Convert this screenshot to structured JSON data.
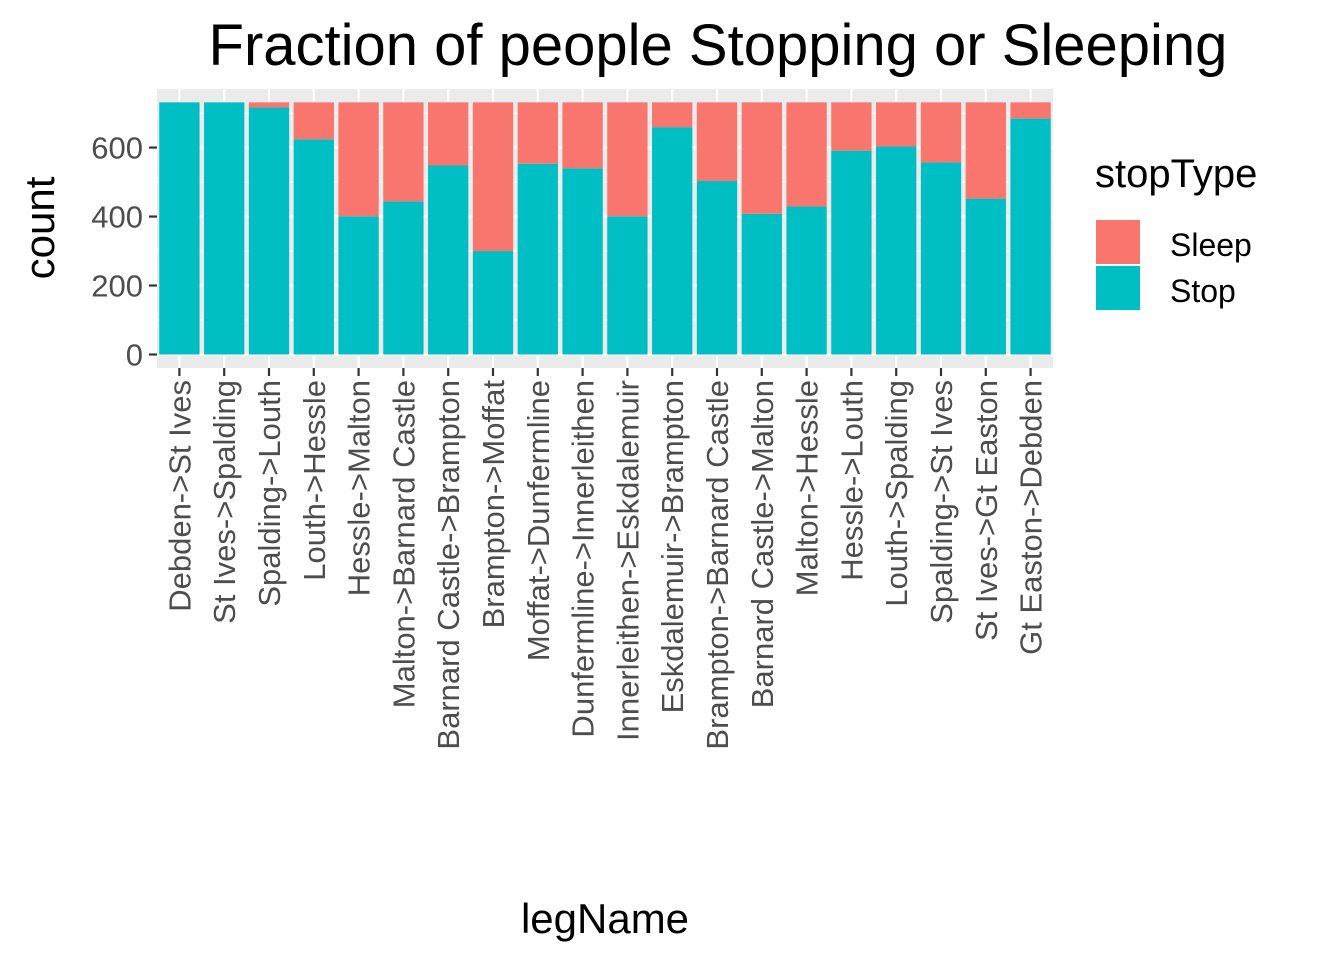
{
  "chart_data": {
    "type": "bar",
    "stacked": true,
    "title": "Fraction of people Stopping or Sleeping",
    "xlabel": "legName",
    "ylabel": "count",
    "ylim": [
      0,
      735
    ],
    "yticks": [
      0,
      200,
      400,
      600
    ],
    "grid": true,
    "legend": {
      "title": "stopType",
      "placement": "right",
      "entries": [
        {
          "label": "Sleep",
          "color": "#F8766D"
        },
        {
          "label": "Stop",
          "color": "#00BFC4"
        }
      ]
    },
    "categories": [
      "Debden->St Ives",
      "St Ives->Spalding",
      "Spalding->Louth",
      "Louth->Hessle",
      "Hessle->Malton",
      "Malton->Barnard Castle",
      "Barnard Castle->Brampton",
      "Brampton->Moffat",
      "Moffat->Dunfermline",
      "Dunfermline->Innerleithen",
      "Innerleithen->Eskdalemuir",
      "Eskdalemuir->Brampton",
      "Brampton->Barnard Castle",
      "Barnard Castle->Malton",
      "Malton->Hessle",
      "Hessle->Louth",
      "Louth->Spalding",
      "Spalding->St Ives",
      "St Ives->Gt Easton",
      "Gt Easton->Debden"
    ],
    "series": [
      {
        "name": "Sleep",
        "color": "#F8766D",
        "values": [
          0,
          0,
          15,
          107,
          330,
          287,
          183,
          431,
          178,
          191,
          330,
          72,
          228,
          323,
          302,
          140,
          128,
          174,
          279,
          47
        ]
      },
      {
        "name": "Stop",
        "color": "#00BFC4",
        "values": [
          731,
          731,
          716,
          624,
          401,
          444,
          548,
          300,
          553,
          540,
          401,
          659,
          503,
          408,
          429,
          591,
          603,
          557,
          452,
          684
        ]
      }
    ]
  }
}
